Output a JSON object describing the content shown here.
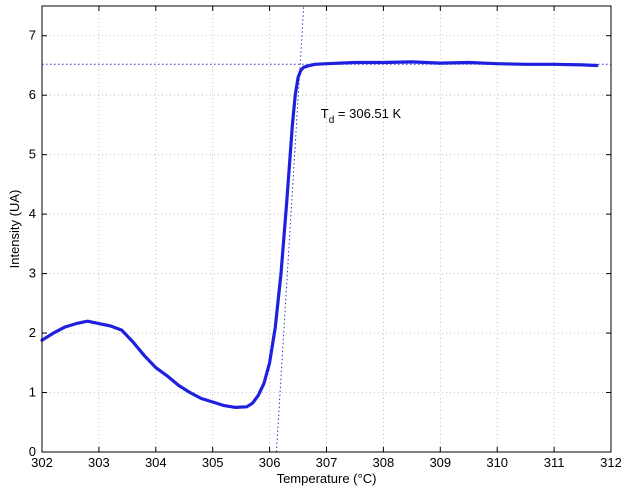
{
  "chart_data": {
    "type": "line",
    "xlabel": "Temperature (°C)",
    "ylabel": "Intensity (UA)",
    "xlim": [
      302,
      312
    ],
    "ylim": [
      0,
      7.5
    ],
    "xticks": [
      "302",
      "303",
      "304",
      "305",
      "306",
      "307",
      "308",
      "309",
      "310",
      "311",
      "312"
    ],
    "yticks": [
      "0",
      "1",
      "2",
      "3",
      "4",
      "5",
      "6",
      "7"
    ],
    "grid": true,
    "line_color": "#1f1fdf",
    "ref_line_color": "#3333cc",
    "series": [
      {
        "x": [
          302.0,
          302.2,
          302.4,
          302.6,
          302.8,
          303.0,
          303.2,
          303.4,
          303.6,
          303.8,
          304.0,
          304.2,
          304.4,
          304.6,
          304.8,
          305.0,
          305.2,
          305.4,
          305.6,
          305.7,
          305.8,
          305.9,
          306.0,
          306.1,
          306.2,
          306.3,
          306.4,
          306.45,
          306.5,
          306.55,
          306.6,
          306.7,
          306.8,
          307.0,
          307.5,
          308.0,
          308.5,
          309.0,
          309.5,
          310.0,
          310.5,
          311.0,
          311.5,
          311.75
        ],
        "y": [
          1.88,
          2.0,
          2.1,
          2.16,
          2.2,
          2.16,
          2.12,
          2.05,
          1.85,
          1.62,
          1.42,
          1.28,
          1.12,
          1.0,
          0.9,
          0.84,
          0.78,
          0.75,
          0.76,
          0.82,
          0.95,
          1.15,
          1.5,
          2.1,
          3.0,
          4.2,
          5.5,
          6.0,
          6.3,
          6.42,
          6.47,
          6.5,
          6.52,
          6.53,
          6.55,
          6.55,
          6.56,
          6.54,
          6.55,
          6.53,
          6.52,
          6.52,
          6.51,
          6.5
        ]
      }
    ],
    "reference_lines": {
      "horizontal_y": 6.52,
      "vertical_line_points": [
        [
          306.12,
          0
        ],
        [
          306.6,
          7.5
        ]
      ]
    },
    "annotation": {
      "prefix": "T",
      "subscript": "d",
      "text": " = 306.51 K",
      "x": 306.9,
      "y": 5.62
    }
  }
}
